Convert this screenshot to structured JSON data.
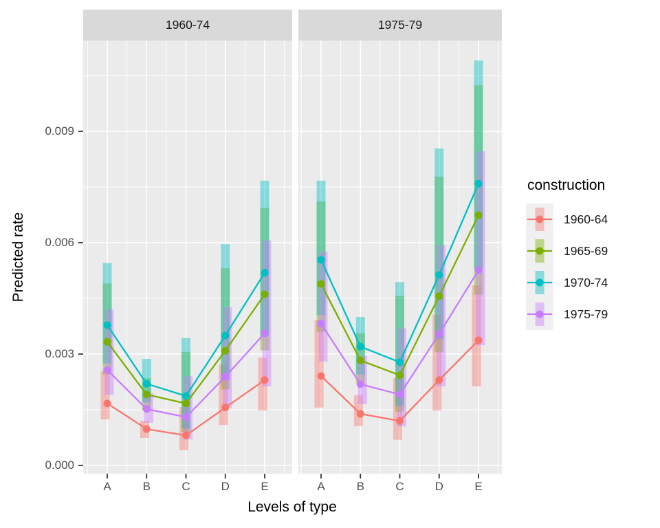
{
  "chart_data": {
    "type": "line",
    "title": "",
    "xlabel": "Levels of type",
    "ylabel": "Predicted rate",
    "legend_title": "construction",
    "categories": [
      "A",
      "B",
      "C",
      "D",
      "E"
    ],
    "y_tick_labels": [
      "0.000",
      "0.003",
      "0.006",
      "0.009"
    ],
    "y_tick_values": [
      0.0,
      0.003,
      0.006,
      0.009
    ],
    "ylim": [
      -0.0002,
      0.0114
    ],
    "grid": "major-and-minor-white-on-gray",
    "legend_position": "right",
    "style": "ggplot2 pointrange with translucent CI bars and connecting lines",
    "legend_entries": [
      {
        "label": "1960-64",
        "color": "#F8766D"
      },
      {
        "label": "1965-69",
        "color": "#7CAE00"
      },
      {
        "label": "1970-74",
        "color": "#00BFC4"
      },
      {
        "label": "1975-79",
        "color": "#C77CFF"
      }
    ],
    "facets": [
      {
        "label": "1960-74",
        "series": [
          {
            "name": "1960-64",
            "color": "#F8766D",
            "values": [
              0.00167,
              0.00098,
              0.00081,
              0.00156,
              0.0023
            ],
            "ci_low": [
              0.00124,
              0.00074,
              0.00041,
              0.00109,
              0.00148
            ],
            "ci_high": [
              0.00254,
              0.0012,
              0.00157,
              0.00272,
              0.0029
            ]
          },
          {
            "name": "1965-69",
            "color": "#7CAE00",
            "values": [
              0.00333,
              0.00191,
              0.00167,
              0.00309,
              0.00461
            ],
            "ci_low": [
              0.00245,
              0.00148,
              0.0009,
              0.00205,
              0.0031
            ],
            "ci_high": [
              0.0049,
              0.00235,
              0.00306,
              0.00531,
              0.00694
            ]
          },
          {
            "name": "1970-74",
            "color": "#00BFC4",
            "values": [
              0.00378,
              0.0022,
              0.00187,
              0.0035,
              0.00519
            ],
            "ci_low": [
              0.00275,
              0.0017,
              0.001,
              0.0023,
              0.0035
            ],
            "ci_high": [
              0.00545,
              0.00287,
              0.00343,
              0.00596,
              0.00767
            ]
          },
          {
            "name": "1975-79",
            "color": "#C77CFF",
            "values": [
              0.00257,
              0.00152,
              0.0013,
              0.00239,
              0.00356
            ],
            "ci_low": [
              0.0019,
              0.00115,
              0.0007,
              0.00155,
              0.00213
            ],
            "ci_high": [
              0.0042,
              0.00195,
              0.0024,
              0.00426,
              0.00606
            ]
          }
        ]
      },
      {
        "label": "1975-79",
        "series": [
          {
            "name": "1960-64",
            "color": "#F8766D",
            "values": [
              0.00241,
              0.00139,
              0.0012,
              0.0023,
              0.00337
            ],
            "ci_low": [
              0.00156,
              0.00106,
              0.00069,
              0.00148,
              0.00213
            ],
            "ci_high": [
              0.00391,
              0.00189,
              0.00235,
              0.00406,
              0.00485
            ]
          },
          {
            "name": "1965-69",
            "color": "#7CAE00",
            "values": [
              0.00489,
              0.00283,
              0.00243,
              0.00456,
              0.00674
            ],
            "ci_low": [
              0.0036,
              0.0022,
              0.00145,
              0.00305,
              0.0046
            ],
            "ci_high": [
              0.00711,
              0.00356,
              0.00457,
              0.00778,
              0.01024
            ]
          },
          {
            "name": "1970-74",
            "color": "#00BFC4",
            "values": [
              0.00554,
              0.0032,
              0.00278,
              0.00513,
              0.00759
            ],
            "ci_low": [
              0.00405,
              0.00245,
              0.0016,
              0.0034,
              0.0053
            ],
            "ci_high": [
              0.00767,
              0.004,
              0.00494,
              0.00854,
              0.01091
            ]
          },
          {
            "name": "1975-79",
            "color": "#C77CFF",
            "values": [
              0.00382,
              0.00219,
              0.00191,
              0.00354,
              0.00526
            ],
            "ci_low": [
              0.0028,
              0.00165,
              0.00105,
              0.00213,
              0.00324
            ],
            "ci_high": [
              0.00576,
              0.00295,
              0.00369,
              0.00593,
              0.00846
            ]
          }
        ]
      }
    ]
  }
}
